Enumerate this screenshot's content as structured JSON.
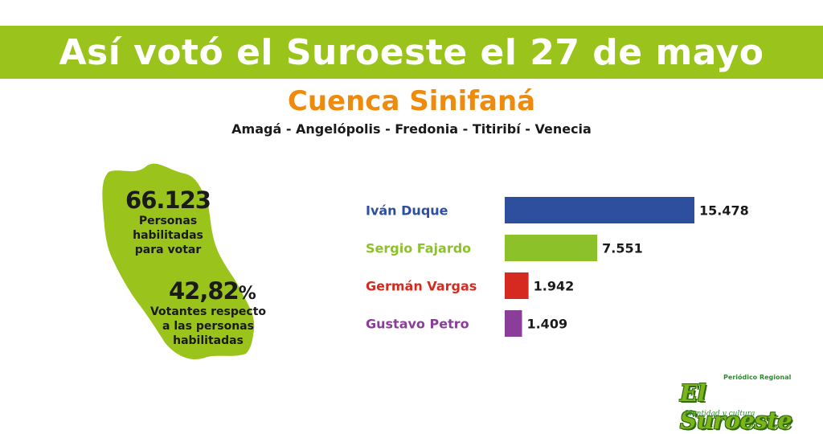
{
  "header": {
    "title": "Así votó el Suroeste el 27 de mayo",
    "subtitle": "Cuenca Sinifaná",
    "municipalities": "Amagá - Angelópolis - Fredonia - Titiribí - Venecia"
  },
  "stats": {
    "registered_value": "66.123",
    "registered_label_1": "Personas",
    "registered_label_2": "habilitadas",
    "registered_label_3": "para votar",
    "turnout_value": "42,82",
    "turnout_unit": "%",
    "turnout_label_1": "Votantes respecto",
    "turnout_label_2": "a las personas",
    "turnout_label_3": "habilitadas"
  },
  "colors": {
    "banner": "#9ac31c",
    "subtitle": "#ee8a0c",
    "map": "#9ac31c"
  },
  "chart_data": {
    "type": "bar",
    "orientation": "horizontal",
    "categories": [
      "Iván Duque",
      "Sergio Fajardo",
      "Germán Vargas",
      "Gustavo Petro"
    ],
    "values": [
      15478,
      7551,
      1942,
      1409
    ],
    "value_labels": [
      "15.478",
      "7.551",
      "1.942",
      "1.409"
    ],
    "colors": [
      "#2d4f9e",
      "#8dc12a",
      "#d42a1f",
      "#8b3d9a"
    ],
    "title": "",
    "xlabel": "",
    "ylabel": "",
    "xlim": [
      0,
      15478
    ],
    "grid": false,
    "legend": "none"
  },
  "logo": {
    "top_text": "Periódico Regional",
    "name": "El Suroeste",
    "slogan": "Identidad y cultura"
  }
}
